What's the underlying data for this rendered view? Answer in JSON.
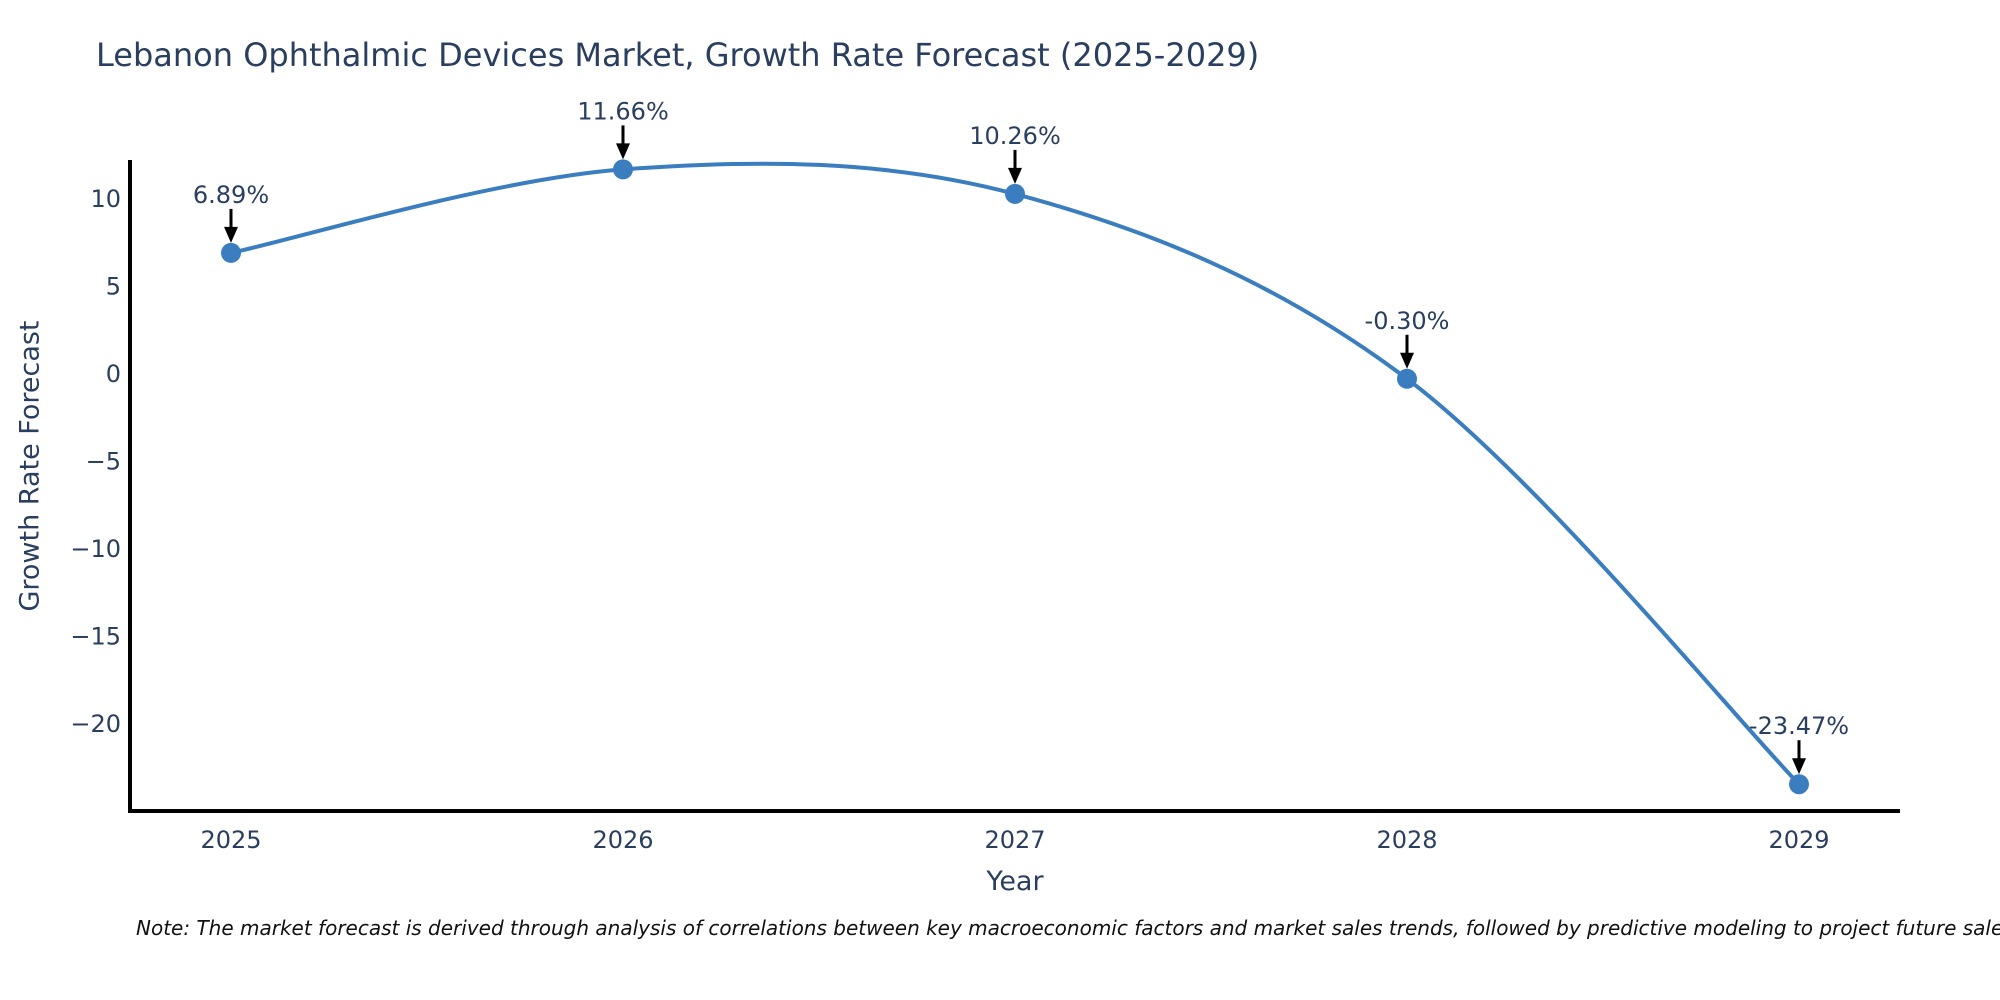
{
  "note": "Note: The market forecast is derived through analysis of correlations between key macroeconomic factors and market sales trends, followed by predictive modeling to project future sales",
  "chart_data": {
    "type": "line",
    "title": "Lebanon Ophthalmic Devices Market, Growth Rate Forecast (2025-2029)",
    "xlabel": "Year",
    "ylabel": "Growth Rate Forecast",
    "x": [
      2025,
      2026,
      2027,
      2028,
      2029
    ],
    "values": [
      6.89,
      11.66,
      10.26,
      -0.3,
      -23.47
    ],
    "point_labels": [
      "6.89%",
      "11.66%",
      "10.26%",
      "-0.30%",
      "-23.47%"
    ],
    "yticks": [
      10,
      5,
      0,
      -5,
      -10,
      -15,
      -20
    ],
    "ytick_labels": [
      "10",
      "5",
      "0",
      "−5",
      "−10",
      "−15",
      "−20"
    ],
    "ylim": [
      -25.0,
      12.2
    ],
    "line_shape": "spline",
    "grid": false,
    "legend": "none",
    "annotations_arrow": true,
    "colors": {
      "line": "#3a7ebf",
      "marker": "#3a7ebf",
      "arrow": "#000000",
      "axis": "#000000",
      "text": "#2a3f5f",
      "note_text": "#111111"
    }
  }
}
